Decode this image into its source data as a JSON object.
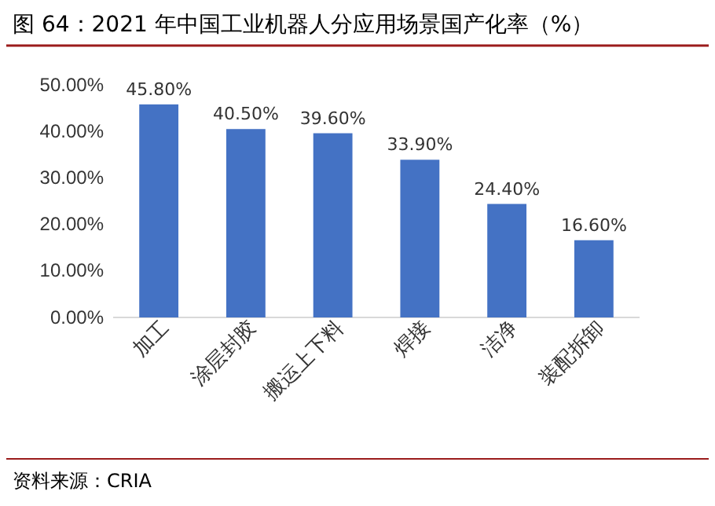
{
  "chart_data": {
    "type": "bar",
    "title": "图 64：2021 年中国工业机器人分应用场景国产化率（%）",
    "categories": [
      "加工",
      "涂层封胶",
      "搬运上下料",
      "焊接",
      "洁净",
      "装配拆卸"
    ],
    "values": [
      45.8,
      40.5,
      39.6,
      33.9,
      24.4,
      16.6
    ],
    "value_labels": [
      "45.80%",
      "40.50%",
      "39.60%",
      "33.90%",
      "24.40%",
      "16.60%"
    ],
    "color": "#4472c4",
    "ylim": [
      0,
      50
    ],
    "yticks": [
      {
        "value": 0,
        "label": "0.00%"
      },
      {
        "value": 10,
        "label": "10.00%"
      },
      {
        "value": 20,
        "label": "20.00%"
      },
      {
        "value": 30,
        "label": "30.00%"
      },
      {
        "value": 40,
        "label": "40.00%"
      },
      {
        "value": 50,
        "label": "50.00%"
      }
    ],
    "grid": false,
    "annotations": [
      "资料来源：CRIA"
    ]
  }
}
